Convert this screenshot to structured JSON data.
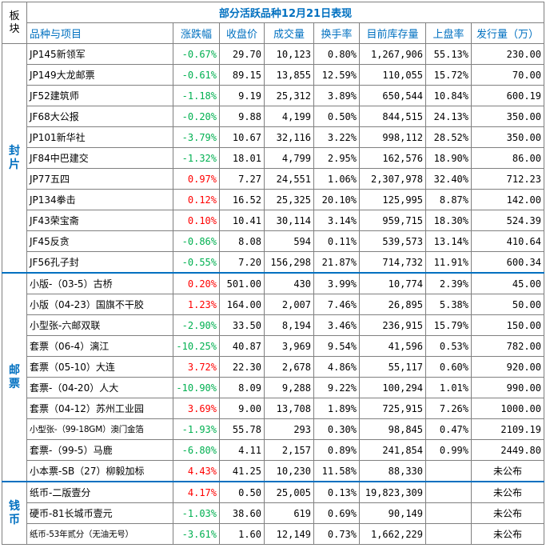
{
  "colors": {
    "title": "#0070c0",
    "header": "#0070c0",
    "section": "#0070c0",
    "up": "#ff0000",
    "down": "#00b050",
    "border": "#808080",
    "section_divider": "#0070c0"
  },
  "table": {
    "section_head_chars": [
      "板",
      "块"
    ],
    "title": "部分活跃品种12月21日表现",
    "headers": [
      "品种与项目",
      "涨跌幅",
      "收盘价",
      "成交量",
      "换手率",
      "目前库存量",
      "上盘率",
      "发行量（万）"
    ],
    "sections": [
      {
        "chars": [
          "封",
          "片"
        ],
        "rows": [
          {
            "name": "JP145新领军",
            "change": "-0.67%",
            "dir": "down",
            "close": "29.70",
            "volume": "10,123",
            "turnover": "0.80%",
            "stock": "1,267,906",
            "listing": "55.13%",
            "issue": "230.00"
          },
          {
            "name": "JP149大龙邮票",
            "change": "-0.61%",
            "dir": "down",
            "close": "89.15",
            "volume": "13,855",
            "turnover": "12.59%",
            "stock": "110,055",
            "listing": "15.72%",
            "issue": "70.00"
          },
          {
            "name": "JF52建筑师",
            "change": "-1.18%",
            "dir": "down",
            "close": "9.19",
            "volume": "25,312",
            "turnover": "3.89%",
            "stock": "650,544",
            "listing": "10.84%",
            "issue": "600.19"
          },
          {
            "name": "JF68大公报",
            "change": "-0.20%",
            "dir": "down",
            "close": "9.88",
            "volume": "4,199",
            "turnover": "0.50%",
            "stock": "844,515",
            "listing": "24.13%",
            "issue": "350.00"
          },
          {
            "name": "JP101新华社",
            "change": "-3.79%",
            "dir": "down",
            "close": "10.67",
            "volume": "32,116",
            "turnover": "3.22%",
            "stock": "998,112",
            "listing": "28.52%",
            "issue": "350.00"
          },
          {
            "name": "JF84中巴建交",
            "change": "-1.32%",
            "dir": "down",
            "close": "18.01",
            "volume": "4,799",
            "turnover": "2.95%",
            "stock": "162,576",
            "listing": "18.90%",
            "issue": "86.00"
          },
          {
            "name": "JP77五四",
            "change": "0.97%",
            "dir": "up",
            "close": "7.27",
            "volume": "24,551",
            "turnover": "1.06%",
            "stock": "2,307,978",
            "listing": "32.40%",
            "issue": "712.23"
          },
          {
            "name": "JP134拳击",
            "change": "0.12%",
            "dir": "up",
            "close": "16.52",
            "volume": "25,325",
            "turnover": "20.10%",
            "stock": "125,995",
            "listing": "8.87%",
            "issue": "142.00"
          },
          {
            "name": "JF43荣宝斋",
            "change": "0.10%",
            "dir": "up",
            "close": "10.41",
            "volume": "30,114",
            "turnover": "3.14%",
            "stock": "959,715",
            "listing": "18.30%",
            "issue": "524.39"
          },
          {
            "name": "JF45反贪",
            "change": "-0.86%",
            "dir": "down",
            "close": "8.08",
            "volume": "594",
            "turnover": "0.11%",
            "stock": "539,573",
            "listing": "13.14%",
            "issue": "410.64"
          },
          {
            "name": "JF56孔子封",
            "change": "-0.55%",
            "dir": "down",
            "close": "7.20",
            "volume": "156,298",
            "turnover": "21.87%",
            "stock": "714,732",
            "listing": "11.91%",
            "issue": "600.34"
          }
        ]
      },
      {
        "chars": [
          "邮",
          "票"
        ],
        "rows": [
          {
            "name": "小版-（03-5）古桥",
            "change": "0.20%",
            "dir": "up",
            "close": "501.00",
            "volume": "430",
            "turnover": "3.99%",
            "stock": "10,774",
            "listing": "2.39%",
            "issue": "45.00"
          },
          {
            "name": "小版（04-23）国旗不干胶",
            "change": "1.23%",
            "dir": "up",
            "close": "164.00",
            "volume": "2,007",
            "turnover": "7.46%",
            "stock": "26,895",
            "listing": "5.38%",
            "issue": "50.00"
          },
          {
            "name": "小型张-六邮双联",
            "change": "-2.90%",
            "dir": "down",
            "close": "33.50",
            "volume": "8,194",
            "turnover": "3.46%",
            "stock": "236,915",
            "listing": "15.79%",
            "issue": "150.00"
          },
          {
            "name": "套票（06-4）漓江",
            "change": "-10.25%",
            "dir": "down",
            "close": "40.87",
            "volume": "3,969",
            "turnover": "9.54%",
            "stock": "41,596",
            "listing": "0.53%",
            "issue": "782.00"
          },
          {
            "name": "套票（05-10）大连",
            "change": "3.72%",
            "dir": "up",
            "close": "22.30",
            "volume": "2,678",
            "turnover": "4.86%",
            "stock": "55,117",
            "listing": "0.60%",
            "issue": "920.00"
          },
          {
            "name": "套票-（04-20）人大",
            "change": "-10.90%",
            "dir": "down",
            "close": "8.09",
            "volume": "9,288",
            "turnover": "9.22%",
            "stock": "100,294",
            "listing": "1.01%",
            "issue": "990.00"
          },
          {
            "name": "套票（04-12）苏州工业园",
            "change": "3.69%",
            "dir": "up",
            "close": "9.00",
            "volume": "13,708",
            "turnover": "1.89%",
            "stock": "725,915",
            "listing": "7.26%",
            "issue": "1000.00"
          },
          {
            "name": "小型张-（99-18GM）澳门金箔",
            "change": "-1.93%",
            "dir": "down",
            "close": "55.78",
            "volume": "293",
            "turnover": "0.30%",
            "stock": "98,845",
            "listing": "0.47%",
            "issue": "2109.19",
            "small": true
          },
          {
            "name": "套票-（99-5）马鹿",
            "change": "-6.80%",
            "dir": "down",
            "close": "4.11",
            "volume": "2,157",
            "turnover": "0.89%",
            "stock": "241,854",
            "listing": "0.99%",
            "issue": "2449.80"
          },
          {
            "name": "小本票-SB（27）柳毅加标",
            "change": "4.43%",
            "dir": "up",
            "close": "41.25",
            "volume": "10,230",
            "turnover": "11.58%",
            "stock": "88,330",
            "listing": "",
            "issue": "未公布",
            "issue_na": true
          }
        ]
      },
      {
        "chars": [
          "钱",
          "币"
        ],
        "rows": [
          {
            "name": "纸币-二版壹分",
            "change": "4.17%",
            "dir": "up",
            "close": "0.50",
            "volume": "25,005",
            "turnover": "0.13%",
            "stock": "19,823,309",
            "listing": "",
            "issue": "未公布",
            "issue_na": true
          },
          {
            "name": "硬币-81长城币壹元",
            "change": "-1.03%",
            "dir": "down",
            "close": "38.60",
            "volume": "619",
            "turnover": "0.69%",
            "stock": "90,149",
            "listing": "",
            "issue": "未公布",
            "issue_na": true
          },
          {
            "name": "纸币-53年贰分（无油无号）",
            "change": "-3.61%",
            "dir": "down",
            "close": "1.60",
            "volume": "12,149",
            "turnover": "0.73%",
            "stock": "1,662,229",
            "listing": "",
            "issue": "未公布",
            "issue_na": true,
            "small": true
          }
        ]
      }
    ]
  }
}
